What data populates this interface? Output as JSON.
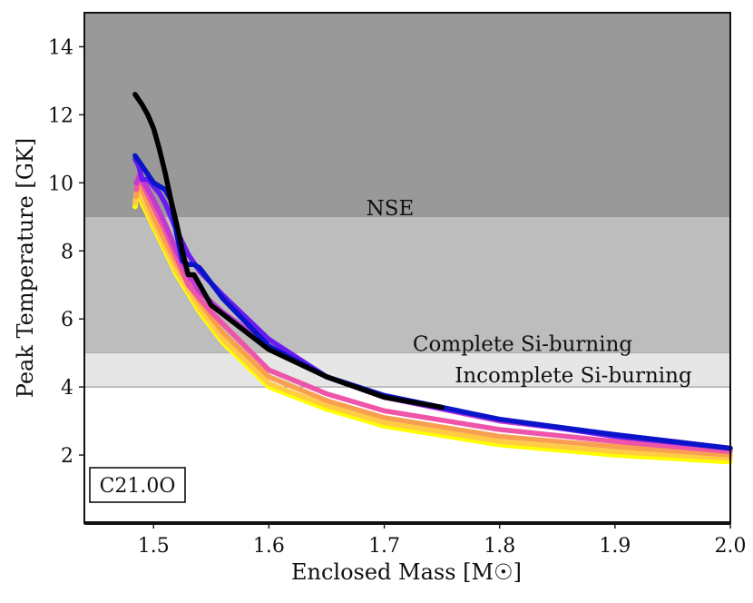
{
  "chart_data": {
    "type": "line",
    "xlabel": "Enclosed Mass [M☉]",
    "ylabel": "Peak Temperature [GK]",
    "xlim": [
      1.44,
      2.0
    ],
    "ylim": [
      0,
      15
    ],
    "x_ticks": [
      1.5,
      1.6,
      1.7,
      1.8,
      1.9,
      2.0
    ],
    "x_tick_labels": [
      "1.5",
      "1.6",
      "1.7",
      "1.8",
      "1.9",
      "2.0"
    ],
    "y_ticks": [
      2,
      4,
      6,
      8,
      10,
      12,
      14
    ],
    "y_tick_labels": [
      "2",
      "4",
      "6",
      "8",
      "10",
      "12",
      "14"
    ],
    "model_label": "C21.0O",
    "regions": [
      {
        "name": "NSE",
        "label": "NSE",
        "y_from": 9,
        "y_to": 15,
        "color": "#999999"
      },
      {
        "name": "complete-si",
        "label": "Complete Si-burning",
        "y_from": 5,
        "y_to": 9,
        "color": "#bdbdbd"
      },
      {
        "name": "incomplete-si",
        "label": "Incomplete Si-burning",
        "y_from": 4,
        "y_to": 5,
        "color": "#e6e6e6"
      }
    ],
    "series": [
      {
        "name": "series-yellow",
        "color": "#ffff00",
        "x": [
          1.484,
          1.486,
          1.488,
          1.49,
          1.5,
          1.52,
          1.54,
          1.56,
          1.6,
          1.65,
          1.7,
          1.8,
          1.9,
          2.0
        ],
        "y": [
          9.3,
          9.8,
          9.6,
          9.4,
          8.7,
          7.3,
          6.2,
          5.3,
          4.0,
          3.35,
          2.85,
          2.3,
          2.0,
          1.8
        ]
      },
      {
        "name": "series-light-orange",
        "color": "#ffcc44",
        "x": [
          1.484,
          1.486,
          1.488,
          1.49,
          1.5,
          1.52,
          1.54,
          1.56,
          1.6,
          1.65,
          1.7,
          1.8,
          1.9,
          2.0
        ],
        "y": [
          9.4,
          9.9,
          9.7,
          9.5,
          8.8,
          7.4,
          6.3,
          5.4,
          4.1,
          3.45,
          2.95,
          2.4,
          2.1,
          1.9
        ]
      },
      {
        "name": "series-orange",
        "color": "#f9a050",
        "x": [
          1.485,
          1.488,
          1.49,
          1.5,
          1.52,
          1.54,
          1.56,
          1.6,
          1.65,
          1.7,
          1.8,
          1.9,
          2.0
        ],
        "y": [
          9.6,
          10.1,
          9.8,
          9.0,
          7.6,
          6.5,
          5.6,
          4.3,
          3.6,
          3.1,
          2.55,
          2.25,
          2.0
        ]
      },
      {
        "name": "series-pink",
        "color": "#ee55a8",
        "x": [
          1.485,
          1.487,
          1.49,
          1.5,
          1.51,
          1.52,
          1.53,
          1.55,
          1.6,
          1.65,
          1.7,
          1.8,
          1.9,
          2.0
        ],
        "y": [
          9.8,
          10.2,
          10.0,
          9.3,
          8.6,
          7.8,
          7.0,
          6.2,
          4.5,
          3.8,
          3.3,
          2.75,
          2.4,
          2.1
        ]
      },
      {
        "name": "series-magenta",
        "color": "#c03ad0",
        "x": [
          1.485,
          1.488,
          1.492,
          1.5,
          1.51,
          1.52,
          1.53,
          1.54,
          1.56,
          1.6,
          1.65,
          1.7,
          1.8,
          1.9,
          2.0
        ],
        "y": [
          10.0,
          10.2,
          10.0,
          9.5,
          8.8,
          8.0,
          7.3,
          6.8,
          6.2,
          5.2,
          4.3,
          3.7,
          3.0,
          2.6,
          2.2
        ]
      },
      {
        "name": "series-purple",
        "color": "#6a1bf0",
        "x": [
          1.484,
          1.487,
          1.49,
          1.495,
          1.5,
          1.505,
          1.51,
          1.52,
          1.53,
          1.54,
          1.56,
          1.6,
          1.65,
          1.7,
          1.8,
          1.9,
          2.0
        ],
        "y": [
          10.7,
          10.5,
          10.1,
          10.1,
          9.9,
          9.7,
          9.4,
          8.6,
          7.9,
          7.4,
          6.7,
          5.4,
          4.3,
          3.7,
          3.05,
          2.55,
          2.2
        ]
      },
      {
        "name": "series-blue",
        "color": "#0a14c8",
        "x": [
          1.484,
          1.49,
          1.5,
          1.51,
          1.515,
          1.52,
          1.525,
          1.53,
          1.535,
          1.54,
          1.56,
          1.6,
          1.65,
          1.7,
          1.8,
          1.9,
          2.0
        ],
        "y": [
          10.8,
          10.5,
          10.0,
          9.8,
          9.5,
          8.5,
          7.7,
          7.6,
          7.6,
          7.5,
          6.6,
          5.2,
          4.3,
          3.75,
          3.05,
          2.6,
          2.2
        ]
      },
      {
        "name": "series-black",
        "color": "#000000",
        "x": [
          1.484,
          1.49,
          1.495,
          1.5,
          1.505,
          1.51,
          1.515,
          1.52,
          1.525,
          1.53,
          1.535,
          1.55,
          1.6,
          1.65,
          1.7,
          1.75
        ],
        "y": [
          12.6,
          12.3,
          12.0,
          11.6,
          11.0,
          10.3,
          9.5,
          8.8,
          8.0,
          7.3,
          7.3,
          6.4,
          5.1,
          4.3,
          3.7,
          3.4
        ]
      }
    ]
  }
}
